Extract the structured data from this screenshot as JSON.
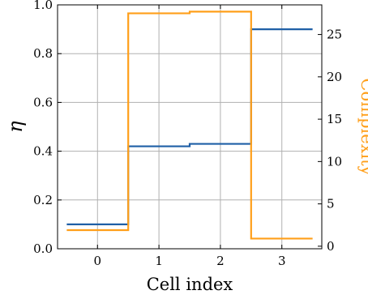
{
  "chart_data": {
    "type": "line",
    "step": "mid",
    "x": [
      0,
      1,
      2,
      3
    ],
    "xlabel": "Cell index",
    "xticks": [
      "0",
      "1",
      "2",
      "3"
    ],
    "xlim": [
      -0.65,
      3.65
    ],
    "grid": true,
    "y_left": {
      "label": "η",
      "ylim": [
        0.0,
        1.0
      ],
      "ticks": [
        "0.0",
        "0.2",
        "0.4",
        "0.6",
        "0.8",
        "1.0"
      ],
      "color": "#1f5fa6"
    },
    "y_right": {
      "label": "Complexity",
      "ylim": [
        -0.3,
        28.5
      ],
      "ticks": [
        "0",
        "5",
        "10",
        "15",
        "20",
        "25"
      ],
      "color": "#ff9f1a"
    },
    "series": [
      {
        "axis": "left",
        "color": "#1f5fa6",
        "values": [
          0.1,
          0.42,
          0.43,
          0.9
        ]
      },
      {
        "axis": "right",
        "color": "#ff9f1a",
        "values": [
          1.9,
          27.5,
          27.7,
          0.9
        ]
      }
    ]
  }
}
